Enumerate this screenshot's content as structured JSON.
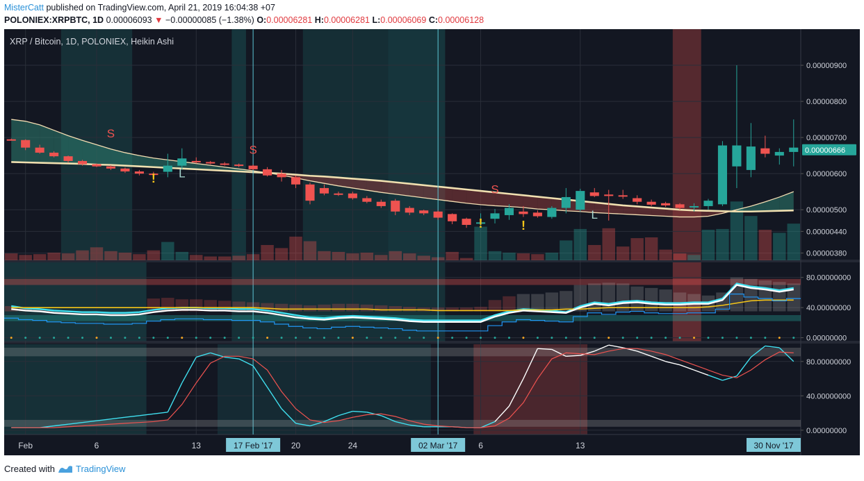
{
  "header": {
    "user": "MisterCatt",
    "published_text": "published on TradingView.com, April 21, 2019 16:04:38 +07",
    "symbol": "POLONIEX:XRPBTC, 1D",
    "last_price": "0.00006093",
    "change_text": "−0.00000085 (−1.38%)",
    "o_label": "O:",
    "o_value": "0.00006281",
    "h_label": "H:",
    "h_value": "0.00006281",
    "l_label": "L:",
    "l_value": "0.00006069",
    "c_label": "C:",
    "c_value": "0.00006128"
  },
  "footer": {
    "created_with": "Created with",
    "brand": "TradingView"
  },
  "colors": {
    "bg": "#131722",
    "up": "#26a69a",
    "down": "#ef5350",
    "ema_fast": "#f5deb3",
    "ema_slow": "#f0e0b0",
    "axis_text": "#d1d4dc",
    "cyan": "#40e0f0",
    "white": "#ffffff",
    "yellow": "#f5c518",
    "blue": "#2196f3"
  },
  "chart_data": [
    {
      "type": "candlestick",
      "title": "XRP / Bitcoin, 1D, POLONIEX, Heikin Ashi",
      "ylim": [
        3.6e-06,
        1e-05
      ],
      "yticks": [
        "0.00000900",
        "0.00000800",
        "0.00000700",
        "0.00000600",
        "0.00000500",
        "0.00000440",
        "0.00000380"
      ],
      "ytick_values": [
        9.0,
        8.0,
        7.0,
        6.0,
        5.0,
        4.4,
        3.8
      ],
      "last_price_label": "0.00000666",
      "last_price_value": 6.66,
      "value_unit": "1e-6 BTC",
      "candles": [
        [
          6.95,
          6.97,
          6.92,
          6.93
        ],
        [
          6.93,
          6.95,
          6.65,
          6.72
        ],
        [
          6.72,
          6.8,
          6.55,
          6.58
        ],
        [
          6.58,
          6.62,
          6.45,
          6.48
        ],
        [
          6.48,
          6.5,
          6.3,
          6.35
        ],
        [
          6.35,
          6.38,
          6.22,
          6.26
        ],
        [
          6.26,
          6.28,
          6.18,
          6.2
        ],
        [
          6.2,
          6.23,
          6.1,
          6.14
        ],
        [
          6.14,
          6.17,
          6.02,
          6.06
        ],
        [
          6.06,
          6.1,
          5.95,
          6.0
        ],
        [
          6.0,
          6.05,
          5.9,
          5.98
        ],
        [
          6.05,
          6.55,
          5.9,
          6.22
        ],
        [
          6.22,
          6.7,
          6.1,
          6.42
        ],
        [
          6.35,
          6.45,
          6.28,
          6.32
        ],
        [
          6.32,
          6.35,
          6.26,
          6.28
        ],
        [
          6.28,
          6.32,
          6.22,
          6.25
        ],
        [
          6.25,
          6.28,
          6.18,
          6.22
        ],
        [
          6.22,
          6.25,
          6.1,
          6.12
        ],
        [
          6.12,
          6.18,
          5.92,
          5.95
        ],
        [
          6.0,
          6.1,
          5.78,
          5.9
        ],
        [
          5.9,
          5.95,
          5.6,
          5.7
        ],
        [
          5.7,
          5.75,
          5.15,
          5.25
        ],
        [
          5.6,
          5.7,
          5.4,
          5.45
        ],
        [
          5.45,
          5.5,
          5.38,
          5.42
        ],
        [
          5.45,
          5.5,
          5.28,
          5.32
        ],
        [
          5.32,
          5.38,
          5.18,
          5.22
        ],
        [
          5.22,
          5.28,
          5.05,
          5.1
        ],
        [
          5.25,
          5.3,
          4.85,
          4.95
        ],
        [
          5.05,
          5.1,
          4.85,
          4.92
        ],
        [
          4.98,
          5.0,
          4.85,
          4.9
        ],
        [
          4.95,
          4.98,
          4.72,
          4.78
        ],
        [
          4.88,
          4.9,
          4.6,
          4.68
        ],
        [
          4.75,
          4.78,
          4.5,
          4.58
        ],
        [
          4.62,
          4.9,
          4.55,
          4.65
        ],
        [
          4.75,
          5.02,
          4.62,
          4.9
        ],
        [
          4.85,
          5.15,
          4.72,
          5.05
        ],
        [
          4.95,
          5.1,
          4.8,
          4.88
        ],
        [
          4.92,
          4.98,
          4.78,
          4.82
        ],
        [
          4.8,
          5.1,
          4.75,
          5.05
        ],
        [
          5.05,
          5.6,
          4.9,
          5.35
        ],
        [
          5.0,
          5.58,
          4.95,
          5.52
        ],
        [
          5.48,
          5.6,
          5.35,
          5.38
        ],
        [
          5.42,
          5.55,
          4.7,
          5.38
        ],
        [
          5.4,
          5.55,
          5.3,
          5.38
        ],
        [
          5.32,
          5.4,
          5.15,
          5.22
        ],
        [
          5.22,
          5.28,
          5.1,
          5.14
        ],
        [
          5.18,
          5.22,
          5.08,
          5.12
        ],
        [
          5.15,
          5.18,
          5.0,
          5.05
        ],
        [
          5.08,
          5.18,
          4.95,
          5.1
        ],
        [
          5.1,
          5.3,
          5.0,
          5.25
        ],
        [
          5.15,
          6.9,
          5.1,
          6.78
        ],
        [
          6.2,
          9.0,
          5.6,
          6.78
        ],
        [
          6.1,
          7.4,
          5.9,
          6.75
        ],
        [
          6.7,
          7.05,
          6.45,
          6.55
        ],
        [
          6.5,
          6.7,
          6.25,
          6.6
        ],
        [
          6.6,
          7.5,
          6.2,
          6.72
        ]
      ],
      "volumes": [
        0.09,
        0.07,
        0.08,
        0.1,
        0.09,
        0.13,
        0.17,
        0.12,
        0.1,
        0.08,
        0.13,
        0.24,
        0.11,
        0.07,
        0.05,
        0.05,
        0.06,
        0.08,
        0.2,
        0.16,
        0.31,
        0.25,
        0.12,
        0.11,
        0.09,
        0.1,
        0.07,
        0.12,
        0.09,
        0.06,
        0.04,
        0.11,
        0.03,
        0.44,
        0.12,
        0.1,
        0.09,
        0.08,
        0.1,
        0.26,
        0.41,
        0.2,
        0.42,
        0.18,
        0.29,
        0.3,
        0.14,
        0.09,
        0.07,
        0.4,
        0.41,
        0.77,
        0.58,
        0.4,
        0.36,
        0.48
      ],
      "ema_fast": [
        7.5,
        7.45,
        7.35,
        7.2,
        7.05,
        6.92,
        6.8,
        6.68,
        6.58,
        6.5,
        6.43,
        6.38,
        6.33,
        6.28,
        6.23,
        6.18,
        6.13,
        6.08,
        6.02,
        5.96,
        5.88,
        5.8,
        5.73,
        5.66,
        5.6,
        5.54,
        5.48,
        5.43,
        5.38,
        5.33,
        5.28,
        5.23,
        5.18,
        5.14,
        5.11,
        5.09,
        5.06,
        5.02,
        5.0,
        4.97,
        4.95,
        4.92,
        4.9,
        4.88,
        4.86,
        4.84,
        4.82,
        4.8,
        4.8,
        4.82,
        4.9,
        5.0,
        5.1,
        5.22,
        5.35,
        5.5
      ],
      "ema_slow": [
        6.32,
        6.31,
        6.3,
        6.29,
        6.28,
        6.27,
        6.25,
        6.24,
        6.22,
        6.2,
        6.18,
        6.16,
        6.14,
        6.12,
        6.1,
        6.08,
        6.06,
        6.04,
        6.02,
        6.0,
        5.97,
        5.94,
        5.92,
        5.89,
        5.86,
        5.83,
        5.8,
        5.76,
        5.72,
        5.68,
        5.64,
        5.6,
        5.56,
        5.52,
        5.48,
        5.44,
        5.4,
        5.36,
        5.32,
        5.28,
        5.24,
        5.2,
        5.16,
        5.12,
        5.09,
        5.06,
        5.03,
        5.0,
        4.98,
        4.97,
        4.96,
        4.95,
        4.95,
        4.96,
        4.97,
        4.98
      ],
      "marks": [
        {
          "label": "S",
          "index": 7,
          "value": 7.0,
          "kind": "sell"
        },
        {
          "label": "!",
          "index": 10,
          "value": 5.75,
          "kind": "warn"
        },
        {
          "label": "L",
          "index": 12,
          "value": 5.9,
          "kind": "long"
        },
        {
          "label": "S",
          "index": 17,
          "value": 6.55,
          "kind": "sell"
        },
        {
          "label": "S",
          "index": 34,
          "value": 5.45,
          "kind": "sell"
        },
        {
          "label": "!",
          "index": 33,
          "value": 4.5,
          "kind": "warn"
        },
        {
          "label": "!",
          "index": 36,
          "value": 4.45,
          "kind": "warn"
        },
        {
          "label": "L",
          "index": 41,
          "value": 4.75,
          "kind": "long"
        }
      ]
    },
    {
      "type": "line",
      "ylim": [
        -5,
        100
      ],
      "yticks": [
        "80.00000000",
        "40.00000000",
        "0.00000000"
      ],
      "ytick_values": [
        80,
        40,
        0
      ],
      "series": [
        {
          "name": "fast",
          "values": [
            42,
            39,
            38,
            36,
            35,
            34,
            34,
            33,
            33,
            34,
            37,
            39,
            40,
            40,
            39,
            39,
            38,
            38,
            36,
            33,
            30,
            27,
            26,
            28,
            29,
            28,
            27,
            26,
            24,
            23,
            23,
            23,
            23,
            23,
            30,
            35,
            38,
            37,
            36,
            34,
            42,
            47,
            45,
            48,
            49,
            47,
            46,
            46,
            47,
            47,
            52,
            72,
            68,
            66,
            63,
            66
          ]
        },
        {
          "name": "signal",
          "values": [
            40,
            40,
            40,
            40,
            40,
            40,
            40,
            40,
            40,
            40,
            40,
            40,
            40,
            40,
            40,
            40,
            40,
            40,
            39,
            38,
            38,
            38,
            38,
            38,
            38,
            38,
            37,
            37,
            37,
            37,
            36,
            36,
            36,
            36,
            36,
            36,
            37,
            37,
            37,
            38,
            38,
            39,
            40,
            40,
            40,
            40,
            40,
            40,
            40,
            41,
            43,
            46,
            49,
            50,
            50,
            50
          ]
        },
        {
          "name": "baseline",
          "values": [
            38,
            36,
            35,
            33,
            32,
            31,
            31,
            30,
            30,
            31,
            34,
            36,
            37,
            37,
            36,
            36,
            35,
            35,
            33,
            30,
            27,
            25,
            24,
            26,
            27,
            26,
            25,
            24,
            22,
            21,
            21,
            21,
            21,
            21,
            28,
            33,
            36,
            35,
            34,
            33,
            40,
            45,
            43,
            46,
            47,
            45,
            44,
            44,
            45,
            45,
            50,
            70,
            66,
            64,
            61,
            64
          ]
        }
      ],
      "histogram": [
        42,
        40,
        38,
        36,
        35,
        34,
        34,
        33,
        33,
        34,
        52,
        53,
        51,
        51,
        50,
        49,
        48,
        47,
        46,
        45,
        44,
        43,
        44,
        45,
        45,
        44,
        43,
        42,
        41,
        40,
        40,
        40,
        40,
        41,
        50,
        55,
        58,
        58,
        60,
        62,
        70,
        72,
        73,
        72,
        68,
        66,
        64,
        60,
        58,
        56,
        60,
        80,
        78,
        76,
        74,
        72
      ]
    },
    {
      "type": "line",
      "ylim": [
        -5,
        100
      ],
      "yticks": [
        "80.00000000",
        "40.00000000",
        "0.00000000"
      ],
      "ytick_values": [
        80,
        40,
        0
      ],
      "series": [
        {
          "name": "k",
          "values": [
            3,
            3,
            3,
            5,
            7,
            9,
            11,
            13,
            15,
            17,
            19,
            21,
            55,
            85,
            90,
            85,
            83,
            75,
            50,
            25,
            8,
            5,
            10,
            17,
            22,
            21,
            17,
            10,
            6,
            4,
            4,
            4,
            3,
            3,
            10,
            28,
            60,
            95,
            94,
            86,
            87,
            92,
            99,
            96,
            92,
            86,
            80,
            76,
            70,
            64,
            58,
            63,
            85,
            98,
            96,
            80
          ]
        },
        {
          "name": "d",
          "values": [
            3,
            3,
            3,
            3,
            4,
            5,
            6,
            7,
            8,
            9,
            10,
            12,
            30,
            55,
            78,
            86,
            86,
            83,
            70,
            45,
            25,
            12,
            9,
            11,
            15,
            18,
            19,
            16,
            11,
            7,
            5,
            4,
            3,
            3,
            5,
            14,
            32,
            60,
            83,
            90,
            89,
            88,
            92,
            95,
            95,
            92,
            88,
            82,
            76,
            70,
            64,
            61,
            70,
            82,
            91,
            90
          ]
        }
      ]
    }
  ],
  "x_axis": {
    "labels": [
      "Feb",
      "6",
      "13",
      "20",
      "24",
      "6",
      "13"
    ],
    "label_indices": [
      1,
      6,
      13,
      20,
      24,
      33,
      40
    ],
    "highlighted_labels": [
      "17 Feb '17",
      "02 Mar '17",
      "30 Nov '17"
    ],
    "highlighted_indices": [
      17,
      30,
      55
    ]
  }
}
